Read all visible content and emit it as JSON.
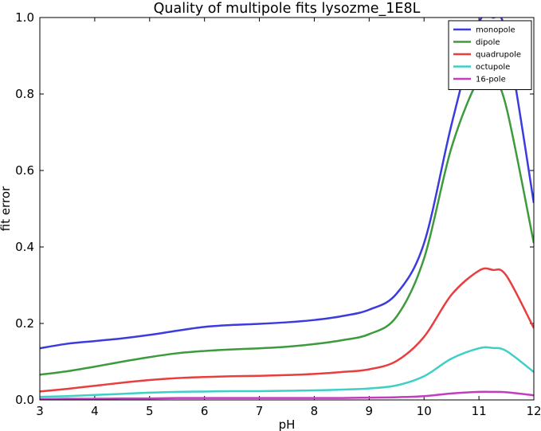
{
  "chart_data": {
    "type": "line",
    "title": "Quality of multipole fits lysozme_1E8L",
    "xlabel": "pH",
    "ylabel": "fit error",
    "xlim": [
      3,
      12
    ],
    "ylim": [
      0.0,
      1.0
    ],
    "xticks": [
      "3",
      "4",
      "5",
      "6",
      "7",
      "8",
      "9",
      "10",
      "11",
      "12"
    ],
    "yticks": [
      "0.0",
      "0.2",
      "0.4",
      "0.6",
      "0.8",
      "1.0"
    ],
    "legend_position": "top-right",
    "x": [
      3,
      3.5,
      4,
      4.5,
      5,
      5.5,
      6,
      6.5,
      7,
      7.5,
      8,
      8.5,
      9,
      9.5,
      10,
      10.5,
      11,
      11.25,
      11.5,
      12
    ],
    "series": [
      {
        "name": "monopole",
        "color": "#3b3bdf",
        "values": [
          0.135,
          0.147,
          0.154,
          0.161,
          0.17,
          0.181,
          0.191,
          0.196,
          0.199,
          0.203,
          0.209,
          0.219,
          0.236,
          0.278,
          0.41,
          0.72,
          0.985,
          1.0,
          0.955,
          0.515
        ]
      },
      {
        "name": "dipole",
        "color": "#3d9a3d",
        "values": [
          0.066,
          0.075,
          0.087,
          0.1,
          0.112,
          0.122,
          0.128,
          0.132,
          0.135,
          0.139,
          0.146,
          0.156,
          0.172,
          0.218,
          0.37,
          0.66,
          0.84,
          0.84,
          0.765,
          0.41
        ]
      },
      {
        "name": "quadrupole",
        "color": "#ea3d3d",
        "values": [
          0.022,
          0.029,
          0.037,
          0.045,
          0.052,
          0.057,
          0.06,
          0.062,
          0.063,
          0.065,
          0.068,
          0.073,
          0.08,
          0.102,
          0.165,
          0.275,
          0.338,
          0.34,
          0.325,
          0.188
        ]
      },
      {
        "name": "octupole",
        "color": "#3ecfc6",
        "values": [
          0.008,
          0.01,
          0.013,
          0.016,
          0.019,
          0.021,
          0.022,
          0.023,
          0.023,
          0.024,
          0.025,
          0.027,
          0.03,
          0.038,
          0.062,
          0.108,
          0.135,
          0.136,
          0.128,
          0.073
        ]
      },
      {
        "name": "16-pole",
        "color": "#c13ec1",
        "values": [
          0.002,
          0.003,
          0.003,
          0.004,
          0.004,
          0.005,
          0.005,
          0.005,
          0.005,
          0.005,
          0.005,
          0.005,
          0.006,
          0.007,
          0.01,
          0.017,
          0.021,
          0.021,
          0.02,
          0.012
        ]
      }
    ]
  }
}
